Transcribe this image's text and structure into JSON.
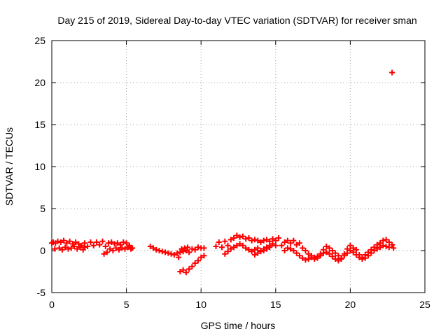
{
  "chart_data": {
    "type": "scatter",
    "title": "Day 215 of 2019, Sidereal Day-to-day VTEC variation (SDTVAR) for receiver sman",
    "xlabel": "GPS time / hours",
    "ylabel": "SDTVAR / TECUs",
    "xlim": [
      0,
      25
    ],
    "ylim": [
      -5,
      25
    ],
    "xticks": [
      0,
      5,
      10,
      15,
      20,
      25
    ],
    "yticks": [
      -5,
      0,
      5,
      10,
      15,
      20,
      25
    ],
    "grid": true,
    "marker": "+",
    "color": "#ff0000",
    "series": [
      {
        "name": "SDTVAR",
        "points": [
          [
            0.0,
            0.9
          ],
          [
            0.1,
            1.0
          ],
          [
            0.2,
            0.2
          ],
          [
            0.25,
            0.9
          ],
          [
            0.4,
            1.1
          ],
          [
            0.5,
            0.3
          ],
          [
            0.6,
            1.0
          ],
          [
            0.7,
            0.1
          ],
          [
            0.8,
            1.2
          ],
          [
            0.9,
            0.4
          ],
          [
            1.0,
            0.9
          ],
          [
            1.1,
            0.2
          ],
          [
            1.2,
            1.1
          ],
          [
            1.3,
            0.3
          ],
          [
            1.4,
            0.8
          ],
          [
            1.5,
            0.5
          ],
          [
            1.6,
            1.0
          ],
          [
            1.7,
            0.2
          ],
          [
            1.8,
            0.8
          ],
          [
            1.9,
            0.4
          ],
          [
            2.0,
            0.6
          ],
          [
            2.1,
            0.1
          ],
          [
            2.2,
            0.4
          ],
          [
            2.2,
            0.9
          ],
          [
            2.4,
            0.5
          ],
          [
            2.6,
            1.0
          ],
          [
            2.8,
            0.6
          ],
          [
            3.0,
            1.0
          ],
          [
            3.2,
            0.7
          ],
          [
            3.4,
            1.1
          ],
          [
            3.5,
            -0.4
          ],
          [
            3.6,
            0.5
          ],
          [
            3.7,
            -0.2
          ],
          [
            3.8,
            0.9
          ],
          [
            3.9,
            0.2
          ],
          [
            4.0,
            1.0
          ],
          [
            4.1,
            0.0
          ],
          [
            4.2,
            0.8
          ],
          [
            4.3,
            0.3
          ],
          [
            4.4,
            0.9
          ],
          [
            4.5,
            0.1
          ],
          [
            4.6,
            0.7
          ],
          [
            4.7,
            0.3
          ],
          [
            4.8,
            1.0
          ],
          [
            4.9,
            0.2
          ],
          [
            5.0,
            0.9
          ],
          [
            5.1,
            0.4
          ],
          [
            5.2,
            0.6
          ],
          [
            5.3,
            0.2
          ],
          [
            5.4,
            0.3
          ],
          [
            6.6,
            0.5
          ],
          [
            6.8,
            0.3
          ],
          [
            7.0,
            0.1
          ],
          [
            7.2,
            0.0
          ],
          [
            7.4,
            -0.1
          ],
          [
            7.6,
            -0.2
          ],
          [
            7.8,
            -0.3
          ],
          [
            8.0,
            -0.4
          ],
          [
            8.2,
            -0.5
          ],
          [
            8.4,
            -0.3
          ],
          [
            8.5,
            -0.8
          ],
          [
            8.6,
            -0.2
          ],
          [
            8.7,
            0.2
          ],
          [
            8.8,
            -0.1
          ],
          [
            8.9,
            0.3
          ],
          [
            9.0,
            0.0
          ],
          [
            9.1,
            0.4
          ],
          [
            9.2,
            -0.2
          ],
          [
            9.4,
            0.2
          ],
          [
            9.6,
            0.1
          ],
          [
            9.8,
            0.4
          ],
          [
            10.0,
            0.3
          ],
          [
            10.2,
            0.3
          ],
          [
            8.6,
            -2.5
          ],
          [
            8.8,
            -2.3
          ],
          [
            9.0,
            -2.6
          ],
          [
            9.2,
            -2.2
          ],
          [
            9.4,
            -1.9
          ],
          [
            9.6,
            -1.5
          ],
          [
            9.8,
            -1.2
          ],
          [
            10.0,
            -0.8
          ],
          [
            10.2,
            -0.6
          ],
          [
            11.0,
            0.5
          ],
          [
            11.2,
            1.0
          ],
          [
            11.4,
            0.4
          ],
          [
            11.6,
            1.1
          ],
          [
            11.8,
            0.6
          ],
          [
            12.0,
            1.3
          ],
          [
            12.2,
            1.5
          ],
          [
            12.4,
            1.8
          ],
          [
            12.6,
            1.6
          ],
          [
            12.8,
            1.7
          ],
          [
            13.0,
            1.4
          ],
          [
            13.2,
            1.5
          ],
          [
            13.4,
            1.2
          ],
          [
            13.6,
            1.3
          ],
          [
            13.8,
            1.2
          ],
          [
            14.0,
            1.0
          ],
          [
            14.2,
            1.2
          ],
          [
            14.4,
            1.3
          ],
          [
            14.6,
            1.1
          ],
          [
            14.8,
            1.4
          ],
          [
            15.0,
            1.2
          ],
          [
            15.2,
            1.5
          ],
          [
            11.6,
            -0.4
          ],
          [
            11.8,
            -0.1
          ],
          [
            12.0,
            0.2
          ],
          [
            12.2,
            0.4
          ],
          [
            12.4,
            0.6
          ],
          [
            12.6,
            0.8
          ],
          [
            12.8,
            0.6
          ],
          [
            13.0,
            0.3
          ],
          [
            13.2,
            0.1
          ],
          [
            13.4,
            -0.1
          ],
          [
            13.6,
            0.1
          ],
          [
            13.8,
            0.3
          ],
          [
            14.0,
            0.0
          ],
          [
            14.2,
            0.2
          ],
          [
            14.4,
            0.4
          ],
          [
            14.6,
            0.6
          ],
          [
            14.8,
            0.8
          ],
          [
            15.0,
            0.6
          ],
          [
            13.6,
            -0.5
          ],
          [
            13.8,
            -0.3
          ],
          [
            14.0,
            -0.1
          ],
          [
            14.2,
            0.0
          ],
          [
            14.4,
            0.2
          ],
          [
            14.6,
            0.4
          ],
          [
            15.4,
            0.6
          ],
          [
            15.6,
            1.0
          ],
          [
            15.8,
            1.2
          ],
          [
            16.0,
            0.9
          ],
          [
            16.2,
            1.2
          ],
          [
            16.4,
            0.7
          ],
          [
            16.6,
            0.9
          ],
          [
            16.8,
            0.3
          ],
          [
            17.0,
            0.0
          ],
          [
            17.2,
            -0.4
          ],
          [
            17.4,
            -0.6
          ],
          [
            17.6,
            -0.8
          ],
          [
            17.8,
            -0.7
          ],
          [
            18.0,
            -0.4
          ],
          [
            18.2,
            0.1
          ],
          [
            18.4,
            0.5
          ],
          [
            18.6,
            0.3
          ],
          [
            18.8,
            0.0
          ],
          [
            19.0,
            -0.3
          ],
          [
            19.2,
            -0.6
          ],
          [
            19.4,
            -0.9
          ],
          [
            19.6,
            -0.4
          ],
          [
            19.8,
            0.2
          ],
          [
            20.0,
            0.6
          ],
          [
            20.2,
            0.3
          ],
          [
            20.4,
            0.1
          ],
          [
            20.6,
            -0.5
          ],
          [
            20.8,
            -0.8
          ],
          [
            21.0,
            -0.5
          ],
          [
            21.2,
            -0.2
          ],
          [
            21.4,
            0.1
          ],
          [
            21.6,
            0.4
          ],
          [
            21.8,
            0.7
          ],
          [
            22.0,
            0.9
          ],
          [
            22.2,
            1.2
          ],
          [
            22.4,
            1.3
          ],
          [
            22.6,
            1.0
          ],
          [
            22.8,
            0.7
          ],
          [
            22.9,
            0.3
          ],
          [
            15.6,
            0.0
          ],
          [
            15.8,
            0.3
          ],
          [
            16.0,
            0.2
          ],
          [
            16.2,
            0.0
          ],
          [
            16.4,
            -0.3
          ],
          [
            16.6,
            -0.6
          ],
          [
            16.8,
            -0.9
          ],
          [
            17.0,
            -1.1
          ],
          [
            17.2,
            -1.0
          ],
          [
            17.4,
            -0.8
          ],
          [
            17.6,
            -1.0
          ],
          [
            17.8,
            -0.9
          ],
          [
            18.0,
            -0.6
          ],
          [
            18.2,
            -0.3
          ],
          [
            18.4,
            -0.2
          ],
          [
            18.6,
            -0.4
          ],
          [
            18.8,
            -0.7
          ],
          [
            19.0,
            -1.0
          ],
          [
            19.2,
            -1.2
          ],
          [
            19.4,
            -1.0
          ],
          [
            19.6,
            -0.6
          ],
          [
            19.8,
            -0.3
          ],
          [
            20.0,
            0.0
          ],
          [
            20.2,
            -0.2
          ],
          [
            20.4,
            -0.5
          ],
          [
            20.6,
            -0.8
          ],
          [
            20.8,
            -1.0
          ],
          [
            21.0,
            -0.9
          ],
          [
            21.2,
            -0.6
          ],
          [
            21.4,
            -0.3
          ],
          [
            21.6,
            0.0
          ],
          [
            21.8,
            0.2
          ],
          [
            22.0,
            0.4
          ],
          [
            22.2,
            0.6
          ],
          [
            22.4,
            0.5
          ],
          [
            22.6,
            0.4
          ],
          [
            22.8,
            21.2
          ]
        ]
      }
    ]
  }
}
